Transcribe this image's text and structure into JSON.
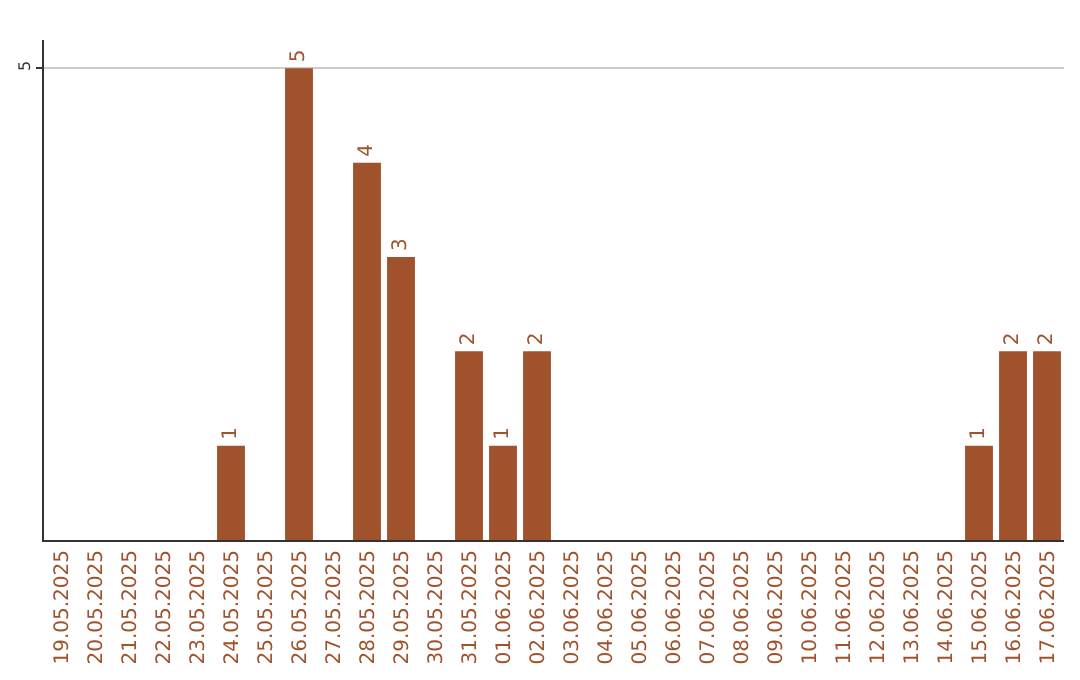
{
  "chart_data": {
    "type": "bar",
    "categories": [
      "19.05.2025",
      "20.05.2025",
      "21.05.2025",
      "22.05.2025",
      "23.05.2025",
      "24.05.2025",
      "25.05.2025",
      "26.05.2025",
      "27.05.2025",
      "28.05.2025",
      "29.05.2025",
      "30.05.2025",
      "31.05.2025",
      "01.06.2025",
      "02.06.2025",
      "03.06.2025",
      "04.06.2025",
      "05.06.2025",
      "06.06.2025",
      "07.06.2025",
      "08.06.2025",
      "09.06.2025",
      "10.06.2025",
      "11.06.2025",
      "12.06.2025",
      "13.06.2025",
      "14.06.2025",
      "15.06.2025",
      "16.06.2025",
      "17.06.2025"
    ],
    "values": [
      0,
      0,
      0,
      0,
      0,
      1,
      0,
      5,
      0,
      4,
      3,
      0,
      2,
      1,
      2,
      0,
      0,
      0,
      0,
      0,
      0,
      0,
      0,
      0,
      0,
      0,
      0,
      1,
      2,
      2
    ],
    "value_labels": [
      null,
      null,
      null,
      null,
      null,
      "1",
      null,
      "5",
      null,
      "4",
      "3",
      null,
      "2",
      "1",
      "2",
      null,
      null,
      null,
      null,
      null,
      null,
      null,
      null,
      null,
      null,
      null,
      null,
      "1",
      "2",
      "2"
    ],
    "color": "#a0522d",
    "ylim": [
      0,
      5.3
    ],
    "yticks": [
      5
    ],
    "grid": "y"
  }
}
